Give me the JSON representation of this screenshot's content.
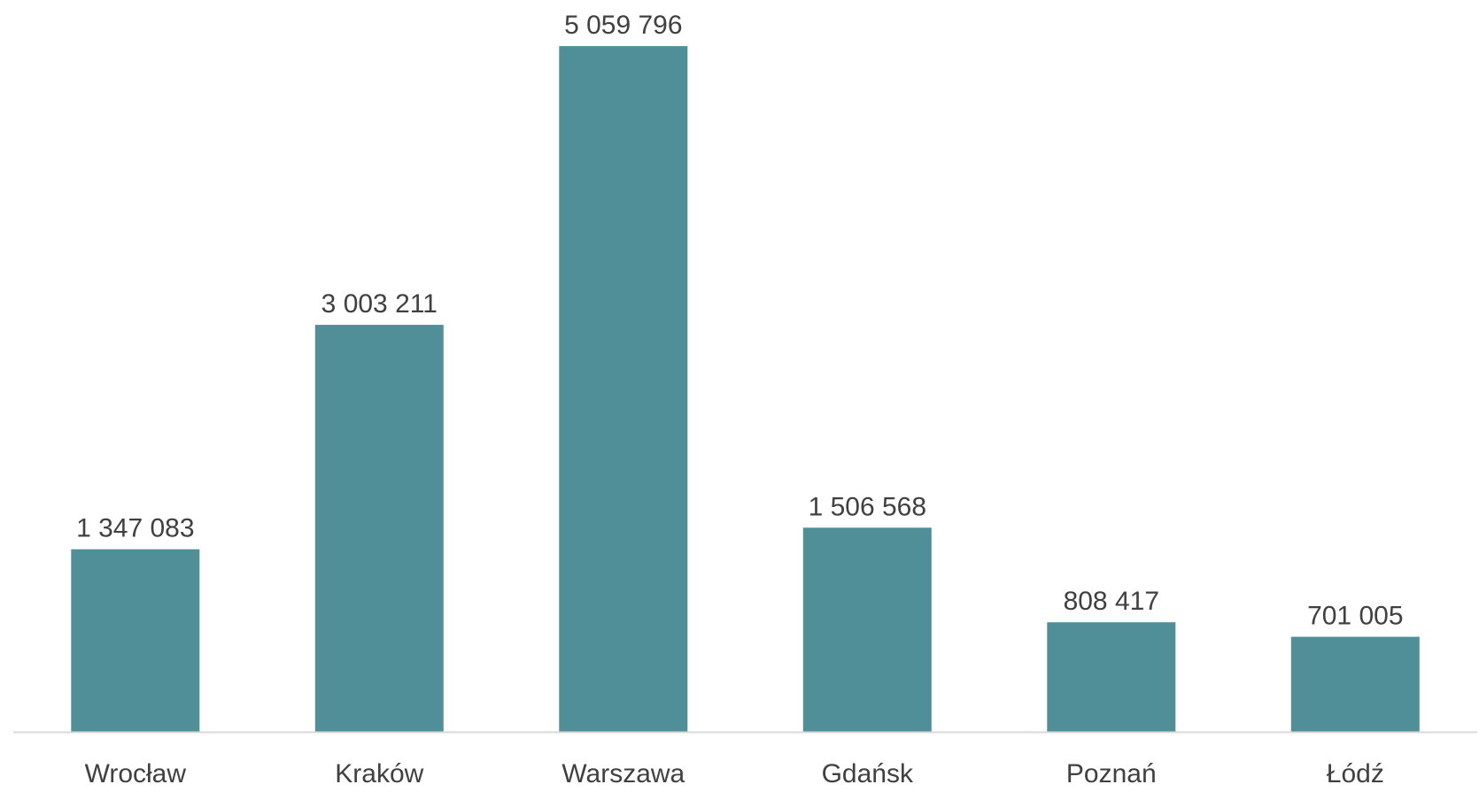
{
  "chart_data": {
    "type": "bar",
    "title": "",
    "xlabel": "",
    "ylabel": "",
    "categories": [
      "Wrocław",
      "Kraków",
      "Warszawa",
      "Gdańsk",
      "Poznań",
      "Łódź"
    ],
    "values": [
      1347083,
      3003211,
      5059796,
      1506568,
      808417,
      701005
    ],
    "value_labels": [
      "1 347 083",
      "3 003 211",
      "5 059 796",
      "1 506 568",
      "808 417",
      "701 005"
    ],
    "ylim": [
      0,
      5400000
    ],
    "grid": false,
    "legend": "none",
    "bar_color": "#508e98",
    "axis_color": "#d9d9d9",
    "text_color": "#404040"
  }
}
